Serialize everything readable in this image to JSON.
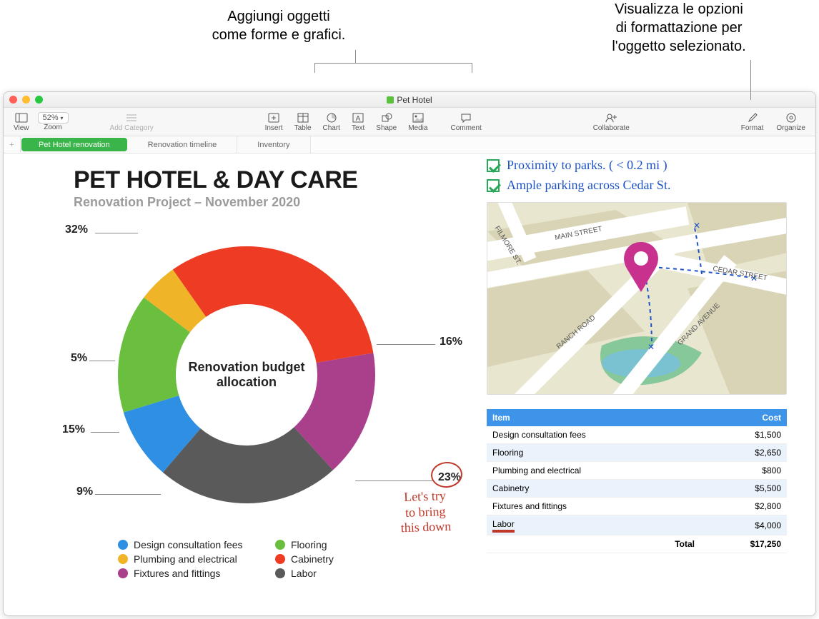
{
  "callouts": {
    "left_line1": "Aggiungi oggetti",
    "left_line2": "come forme e grafici.",
    "right_line1": "Visualizza le opzioni",
    "right_line2": "di formattazione per",
    "right_line3": "l'oggetto selezionato."
  },
  "window": {
    "title": "Pet Hotel"
  },
  "toolbar": {
    "view": "View",
    "zoom_value": "52%",
    "zoom_label": "Zoom",
    "add_category": "Add Category",
    "insert": "Insert",
    "table": "Table",
    "chart": "Chart",
    "text": "Text",
    "shape": "Shape",
    "media": "Media",
    "comment": "Comment",
    "collaborate": "Collaborate",
    "format": "Format",
    "organize": "Organize"
  },
  "tabs": {
    "tab1": "Pet Hotel renovation",
    "tab2": "Renovation timeline",
    "tab3": "Inventory"
  },
  "document": {
    "title": "PET HOTEL & DAY CARE",
    "subtitle": "Renovation Project – November 2020",
    "donut_center1": "Renovation budget",
    "donut_center2": "allocation"
  },
  "chart": {
    "type": "donut",
    "inner_radius_pct": 55,
    "segments": [
      {
        "label": "Cabinetry",
        "value": 32,
        "pct_text": "32%",
        "color": "#ed3b24"
      },
      {
        "label": "Fixtures and fittings",
        "value": 16,
        "pct_text": "16%",
        "color": "#aa3f8b"
      },
      {
        "label": "Labor",
        "value": 23,
        "pct_text": "23%",
        "color": "#5a5a5a"
      },
      {
        "label": "Design consultation fees",
        "value": 9,
        "pct_text": "9%",
        "color": "#2e8fe3"
      },
      {
        "label": "Flooring",
        "value": 15,
        "pct_text": "15%",
        "color": "#6bbf3f"
      },
      {
        "label": "Plumbing and electrical",
        "value": 5,
        "pct_text": "5%",
        "color": "#efb428"
      }
    ],
    "start_angle_deg": -125
  },
  "legend_order": [
    "Design consultation fees",
    "Flooring",
    "Plumbing and electrical",
    "Cabinetry",
    "Fixtures and fittings",
    "Labor"
  ],
  "legend_colors": {
    "Design consultation fees": "#2e8fe3",
    "Flooring": "#6bbf3f",
    "Plumbing and electrical": "#efb428",
    "Cabinetry": "#ed3b24",
    "Fixtures and fittings": "#aa3f8b",
    "Labor": "#5a5a5a"
  },
  "handnote": {
    "line1": "Let's try",
    "line2": "to bring",
    "line3": "this down"
  },
  "checklist": {
    "item1": "Proximity to parks. ( < 0.2 mi )",
    "item2": "Ample parking across Cedar St."
  },
  "map": {
    "bg": "#e9e6cf",
    "road": "#ffffff",
    "park": "#87c89a",
    "water": "#7ac2d1",
    "dash": "#1e52c7",
    "pin": "#c9318f",
    "streets": {
      "filmore": "FILMORE ST.",
      "main": "MAIN STREET",
      "cedar": "CEDAR STREET",
      "ranch": "RANCH ROAD",
      "grand": "GRAND AVENUE"
    }
  },
  "table": {
    "header_item": "Item",
    "header_cost": "Cost",
    "rows": [
      {
        "item": "Design consultation fees",
        "cost": "$1,500"
      },
      {
        "item": "Flooring",
        "cost": "$2,650"
      },
      {
        "item": "Plumbing and electrical",
        "cost": "$800"
      },
      {
        "item": "Cabinetry",
        "cost": "$5,500"
      },
      {
        "item": "Fixtures and fittings",
        "cost": "$2,800"
      },
      {
        "item": "Labor",
        "cost": "$4,000"
      }
    ],
    "total_label": "Total",
    "total_value": "$17,250",
    "header_bg": "#3e94e8",
    "alt_bg": "#eaf3fc"
  }
}
